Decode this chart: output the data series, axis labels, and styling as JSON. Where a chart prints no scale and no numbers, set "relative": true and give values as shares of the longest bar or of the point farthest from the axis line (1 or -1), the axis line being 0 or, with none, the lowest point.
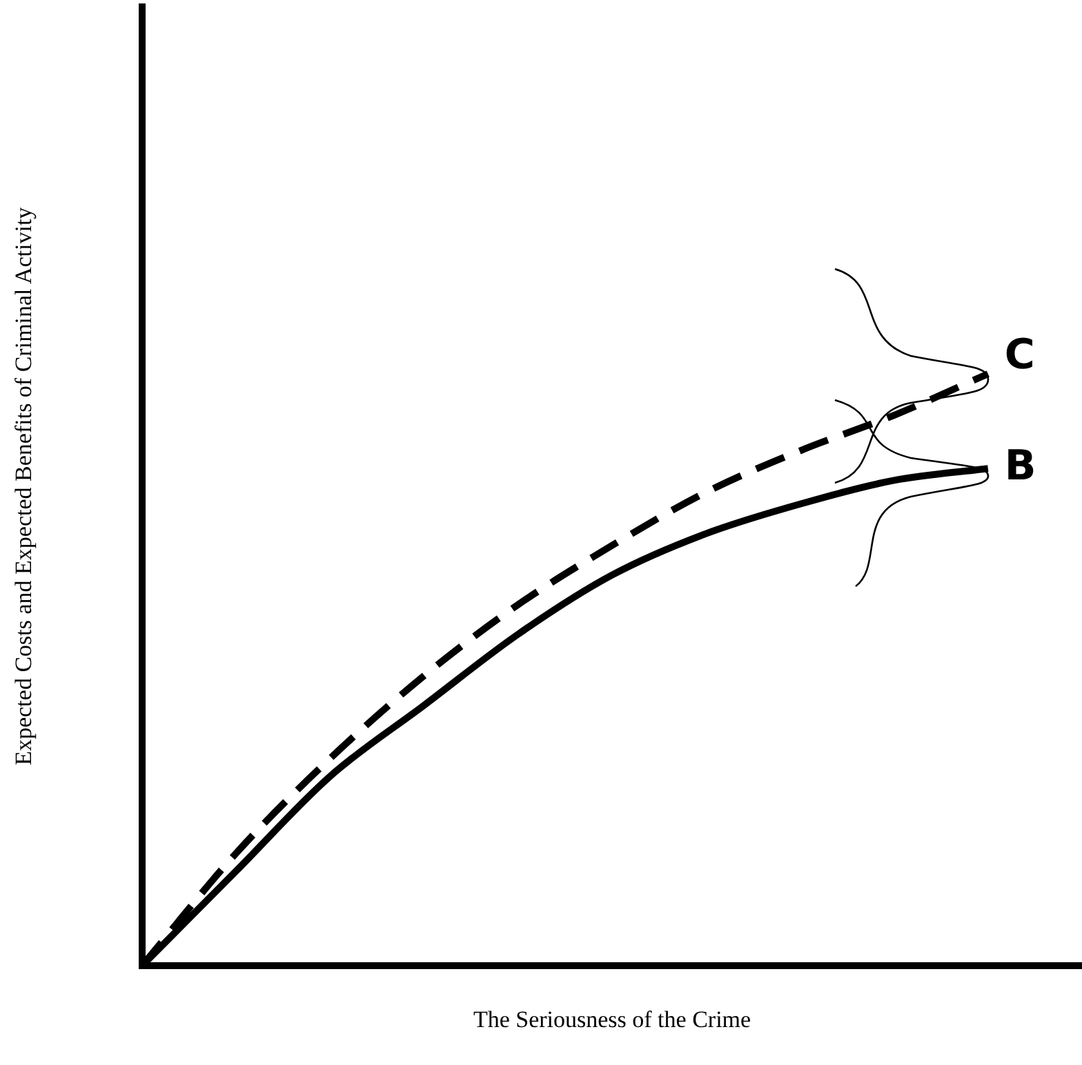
{
  "chart_data": {
    "type": "line",
    "xlabel": "The Seriousness of the Crime",
    "ylabel": "Expected Costs and Expected Benefits of Criminal Activity",
    "relative": true,
    "categories": [
      null,
      null,
      null,
      null,
      null,
      null,
      null,
      null,
      null,
      null,
      null
    ],
    "series": [
      {
        "name": "C",
        "color": "#000000",
        "line_style": "dashed",
        "values": [
          0,
          0.19,
          0.35,
          0.49,
          0.61,
          0.71,
          0.8,
          0.87,
          0.93,
          1,
          null
        ]
      },
      {
        "name": "B",
        "color": "#000000",
        "line_style": "solid",
        "values": [
          0,
          0.16,
          0.32,
          0.44,
          0.56,
          0.66,
          0.73,
          0.78,
          0.82,
          0.84,
          null
        ]
      }
    ],
    "marker": "none",
    "grid": false,
    "legend": false
  }
}
